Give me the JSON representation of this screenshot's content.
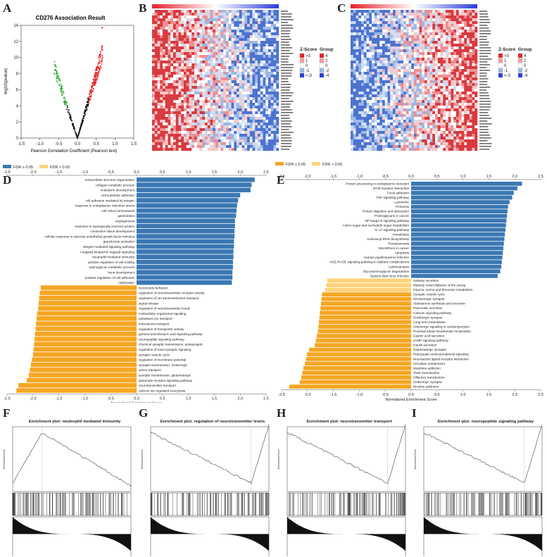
{
  "letters": {
    "A": "A",
    "B": "B",
    "C": "C",
    "D": "D",
    "E": "E",
    "F": "F",
    "G": "G",
    "H": "H",
    "I": "I"
  },
  "panelA": {
    "title": "CD276 Association Result",
    "xlabel": "Pearson Correlation Coefficient (Pearson test)",
    "ylabel": "-log10(pvalue)"
  },
  "heatmap_legend": {
    "zscore_title": "Z-Score",
    "zscore_items": [
      ">3",
      "1",
      "0",
      "-1",
      "<-3"
    ],
    "group_title": "Group",
    "group_items": [
      "4",
      "2",
      "0",
      "-2",
      "-4"
    ],
    "colors": [
      "#e8202a",
      "#f2a0a0",
      "#ffffff",
      "#9fb9e8",
      "#2a3cdb"
    ],
    "group_colors": [
      "#e8202a",
      "#f2a0a0",
      "#ffffff",
      "#9fb9e8",
      "#2a3cdb"
    ]
  },
  "fdr_legend": {
    "sig": "FDR ≤ 0.05",
    "nonsig": "FDR > 0.05",
    "colors": {
      "D_sig": "#3b78b3",
      "D_nonsig": "#f5a623",
      "E_sig": "#f5a623",
      "E_nonsig": "#ffd27a"
    }
  },
  "nes_label": "Normalized Enrichment Score",
  "chart_data": [
    {
      "id": "A",
      "type": "scatter",
      "title": "CD276 Association Result",
      "xlabel": "Pearson Correlation Coefficient (Pearson test)",
      "ylabel": "-log10(pvalue)",
      "xlim": [
        -1.5,
        1.5
      ],
      "ylim": [
        0,
        14
      ],
      "xticks": [
        -1.5,
        -1.0,
        -0.5,
        0.0,
        0.5,
        1.0,
        1.5
      ],
      "yticks": [
        0,
        2,
        4,
        6,
        8,
        10,
        12,
        14
      ]
    },
    {
      "id": "D",
      "type": "bar",
      "xlabel": "Normalized Enrichment Score",
      "xlim": [
        -2.5,
        2.5
      ],
      "xticks": [
        -2.5,
        -2.0,
        -1.5,
        -1.0,
        -0.5,
        0.0,
        0.5,
        1.0,
        1.5,
        2.0,
        2.5
      ],
      "positive": [
        {
          "label": "extracellular structure organization",
          "value": 2.28
        },
        {
          "label": "collagen metabolic process",
          "value": 2.22
        },
        {
          "label": "endoderm development",
          "value": 2.2
        },
        {
          "label": "cell-substrate adhesion",
          "value": 2.0
        },
        {
          "label": "cell adhesion mediated by integrin",
          "value": 1.96
        },
        {
          "label": "response to endoplasmic reticulum stress",
          "value": 1.94
        },
        {
          "label": "cell redox homeostasis",
          "value": 1.93
        },
        {
          "label": "gastrulation",
          "value": 1.92
        },
        {
          "label": "angiogenesis",
          "value": 1.9
        },
        {
          "label": "response to topologically incorrect protein",
          "value": 1.9
        },
        {
          "label": "connective tissue development",
          "value": 1.89
        },
        {
          "label": "cellular response to vascular endothelial growth factor stimulus",
          "value": 1.89
        },
        {
          "label": "granulocyte activation",
          "value": 1.88
        },
        {
          "label": "integrin-mediated signaling pathway",
          "value": 1.88
        },
        {
          "label": "I-kappaB kinase/NF-kappaB signaling",
          "value": 1.87
        },
        {
          "label": "neutrophil mediated immunity",
          "value": 1.87
        },
        {
          "label": "positive regulation of cell motility",
          "value": 1.86
        },
        {
          "label": "aminoglycan metabolic process",
          "value": 1.86
        },
        {
          "label": "bone development",
          "value": 1.85
        },
        {
          "label": "positive regulation of cell adhesion",
          "value": 1.85
        },
        {
          "label": "ossification",
          "value": 1.84
        }
      ],
      "negative": [
        {
          "label": "locomotory behavior",
          "value": -1.85
        },
        {
          "label": "regulation of neurotransmitter receptor activity",
          "value": -1.87
        },
        {
          "label": "regulation of ion transmembrane transport",
          "value": -1.88
        },
        {
          "label": "signal release",
          "value": -1.89
        },
        {
          "label": "regulation of neurotransmitter levels",
          "value": -1.9
        },
        {
          "label": "multicellular organismal signaling",
          "value": -1.92
        },
        {
          "label": "potassium ion transport",
          "value": -1.93
        },
        {
          "label": "monoamine transport",
          "value": -1.94
        },
        {
          "label": "regulation of transporter activity",
          "value": -1.95
        },
        {
          "label": "gamma-aminobutyric acid signaling pathway",
          "value": -1.96
        },
        {
          "label": "neuropeptide signaling pathway",
          "value": -1.97
        },
        {
          "label": "chemical synaptic transmission, postsynaptic",
          "value": -1.98
        },
        {
          "label": "regulation of trans-synaptic signaling",
          "value": -1.99
        },
        {
          "label": "synaptic vesicle cycle",
          "value": -2.0
        },
        {
          "label": "regulation of membrane potential",
          "value": -2.02
        },
        {
          "label": "synaptic transmission, GABAergic",
          "value": -2.04
        },
        {
          "label": "amine transport",
          "value": -2.06
        },
        {
          "label": "synaptic transmission, glutamatergic",
          "value": -2.08
        },
        {
          "label": "glutamate receptor signaling pathway",
          "value": -2.12
        },
        {
          "label": "neurotransmitter transport",
          "value": -2.28
        },
        {
          "label": "calcium ion regulated exocytosis",
          "value": -2.32
        }
      ]
    },
    {
      "id": "E",
      "type": "bar",
      "xlabel": "Normalized Enrichment Score",
      "xlim": [
        -2.5,
        2.5
      ],
      "xticks": [
        -2.5,
        -2.0,
        -1.5,
        -1.0,
        -0.5,
        0.0,
        0.5,
        1.0,
        1.5,
        2.0,
        2.5
      ],
      "positive": [
        {
          "label": "Protein processing in endoplasmic reticulum",
          "value": 2.14
        },
        {
          "label": "ECM-receptor interaction",
          "value": 2.05
        },
        {
          "label": "Focal adhesion",
          "value": 1.98
        },
        {
          "label": "TNF signaling pathway",
          "value": 1.95
        },
        {
          "label": "Lysosome",
          "value": 1.9
        },
        {
          "label": "Pertussis",
          "value": 1.87
        },
        {
          "label": "Protein digestion and absorption",
          "value": 1.86
        },
        {
          "label": "Proteoglycans in cancer",
          "value": 1.85
        },
        {
          "label": "NF-kappa B signaling pathway",
          "value": 1.84
        },
        {
          "label": "Amino sugar and nucleotide sugar metabolism",
          "value": 1.83
        },
        {
          "label": "IL-17 signaling pathway",
          "value": 1.82
        },
        {
          "label": "Amoebiasis",
          "value": 1.81
        },
        {
          "label": "Aminoacyl-tRNA biosynthesis",
          "value": 1.8
        },
        {
          "label": "Toxoplasmosis",
          "value": 1.79
        },
        {
          "label": "MicroRNAs in cancer",
          "value": 1.78
        },
        {
          "label": "Apoptosis",
          "value": 1.77
        },
        {
          "label": "Human papillomavirus infection",
          "value": 1.76
        },
        {
          "label": "AGE-RAGE signaling pathway in diabetic complications",
          "value": 1.75
        },
        {
          "label": "Leishmaniasis",
          "value": 1.74
        },
        {
          "label": "Glycosaminoglycan degradation",
          "value": 1.72
        },
        {
          "label": "Epstein-Barr virus infection",
          "value": 1.67
        }
      ],
      "negative": [
        {
          "label": "Salivary secretion",
          "value": -1.62,
          "fdr": "nonsig"
        },
        {
          "label": "Maturity onset diabetes of the young",
          "value": -1.64,
          "fdr": "nonsig"
        },
        {
          "label": "Glycine, serine and threonine metabolism",
          "value": -1.66,
          "fdr": "nonsig"
        },
        {
          "label": "Synaptic vesicle cycle",
          "value": -1.72,
          "fdr": "sig"
        },
        {
          "label": "Serotonergic synapse",
          "value": -1.73,
          "fdr": "sig"
        },
        {
          "label": "Aldosterone synthesis and secretion",
          "value": -1.74,
          "fdr": "sig"
        },
        {
          "label": "Pancreatic secretion",
          "value": -1.75,
          "fdr": "sig"
        },
        {
          "label": "Calcium signaling pathway",
          "value": -1.76,
          "fdr": "sig"
        },
        {
          "label": "Cholinergic synapse",
          "value": -1.77,
          "fdr": "sig"
        },
        {
          "label": "Long-term potentiation",
          "value": -1.78,
          "fdr": "sig"
        },
        {
          "label": "Adrenergic signaling in cardiomyocytes",
          "value": -1.79,
          "fdr": "sig"
        },
        {
          "label": "Proximal tubule bicarbonate reclamation",
          "value": -1.8,
          "fdr": "sig"
        },
        {
          "label": "Gastric acid secretion",
          "value": -1.82,
          "fdr": "sig"
        },
        {
          "label": "cAMP signaling pathway",
          "value": -1.84,
          "fdr": "sig"
        },
        {
          "label": "Insulin secretion",
          "value": -1.86,
          "fdr": "sig"
        },
        {
          "label": "Glutamatergic synapse",
          "value": -1.97,
          "fdr": "sig"
        },
        {
          "label": "Retrograde endocannabinoid signaling",
          "value": -2.01,
          "fdr": "sig"
        },
        {
          "label": "Neuroactive ligand-receptor interaction",
          "value": -2.03,
          "fdr": "sig"
        },
        {
          "label": "Circadian entrainment",
          "value": -2.05,
          "fdr": "sig"
        },
        {
          "label": "Morphine addiction",
          "value": -2.08,
          "fdr": "sig"
        },
        {
          "label": "Taste transduction",
          "value": -2.1,
          "fdr": "sig"
        },
        {
          "label": "Olfactory transduction",
          "value": -2.12,
          "fdr": "sig"
        },
        {
          "label": "GABAergic synapse",
          "value": -2.15,
          "fdr": "sig"
        },
        {
          "label": "Nicotine addiction",
          "value": -2.35,
          "fdr": "sig"
        }
      ]
    },
    {
      "id": "F",
      "type": "line",
      "title": "Enrichment plot: neutrophil mediated immunity",
      "xlabel": "Rank in Ordered Dataset",
      "ylabel": "Enrichment Score",
      "peak": "early-positive"
    },
    {
      "id": "G",
      "type": "line",
      "title": "Enrichment plot: regulation of neurotransmitter levels",
      "xlabel": "Rank in Ordered Dataset",
      "ylabel": "Enrichment Score",
      "peak": "late-negative"
    },
    {
      "id": "H",
      "type": "line",
      "title": "Enrichment plot: neurotransmitter transport",
      "xlabel": "Rank in Ordered Dataset",
      "ylabel": "Enrichment Score",
      "peak": "late-negative"
    },
    {
      "id": "I",
      "type": "line",
      "title": "Enrichment plot: neuropeptide signaling pathway",
      "xlabel": "Rank in Ordered Dataset",
      "ylabel": "Enrichment Score",
      "peak": "late-negative"
    }
  ]
}
